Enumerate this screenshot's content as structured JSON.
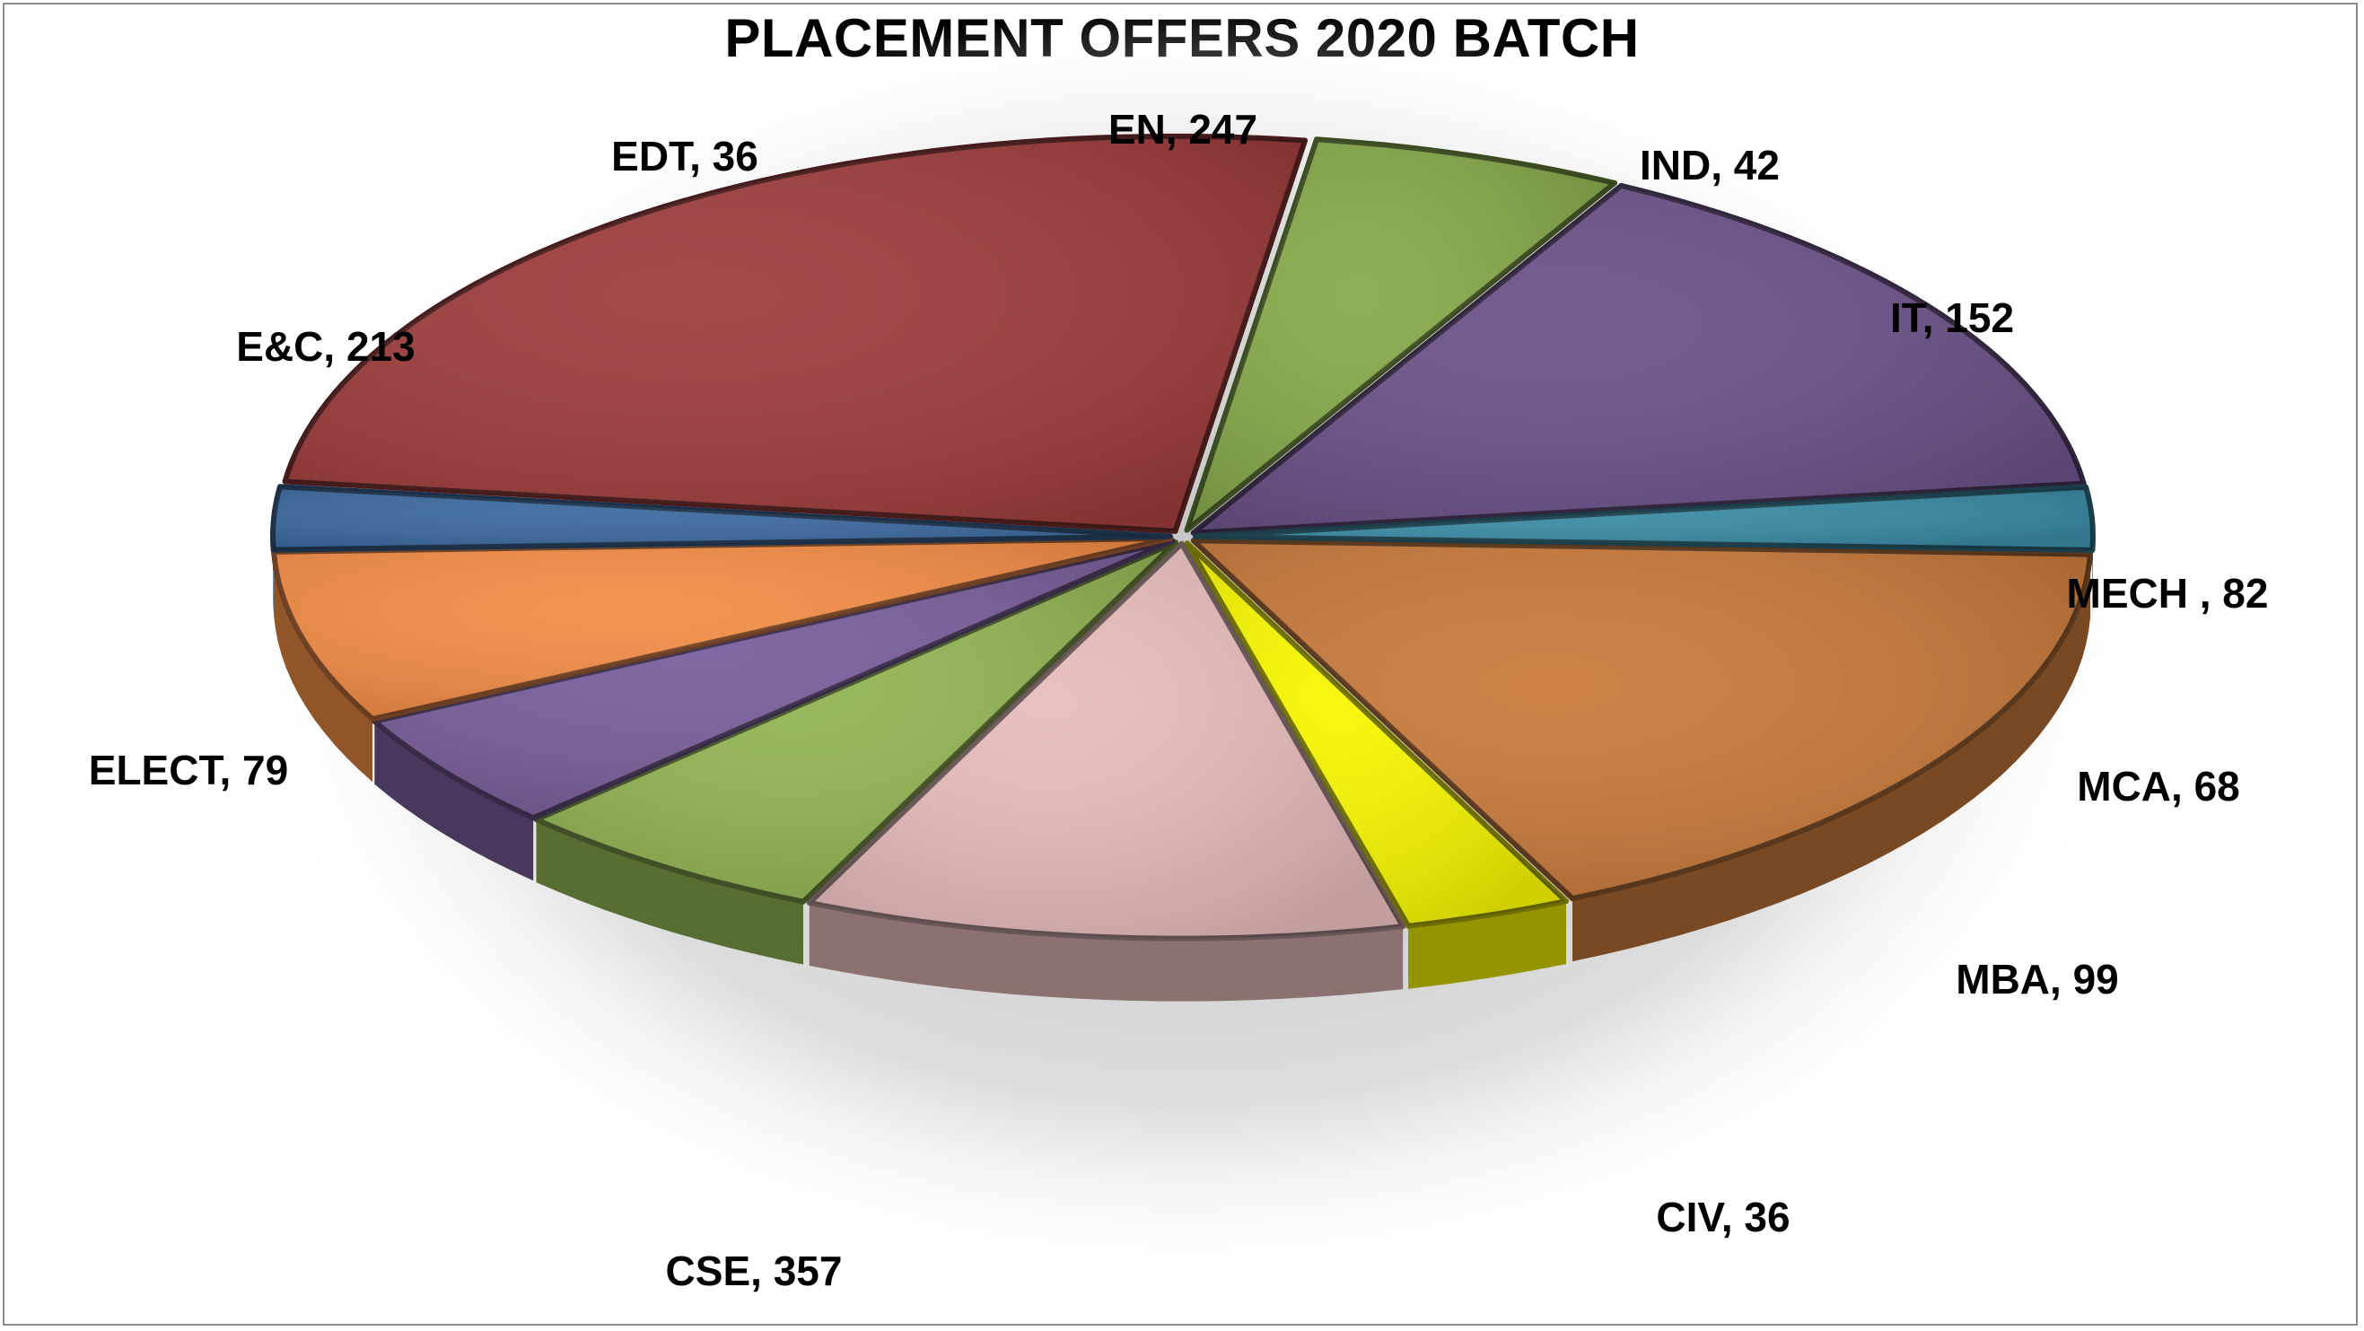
{
  "chart_data": {
    "type": "pie",
    "title": "PLACEMENT OFFERS 2020 BATCH",
    "three_d": true,
    "exploded": true,
    "slices": [
      {
        "label": "EN, 247",
        "name": "EN",
        "value": 247,
        "color": "#c97a3b"
      },
      {
        "label": "IND, 42",
        "name": "IND",
        "value": 42,
        "color": "#f7f700"
      },
      {
        "label": "IT, 152",
        "name": "IT",
        "value": 152,
        "color": "#e8bcbc"
      },
      {
        "label": "MECH , 82",
        "name": "MECH",
        "value": 82,
        "color": "#93b553"
      },
      {
        "label": "MCA, 68",
        "name": "MCA",
        "value": 68,
        "color": "#7a5e9c"
      },
      {
        "label": "MBA, 99",
        "name": "MBA",
        "value": 99,
        "color": "#f48d46"
      },
      {
        "label": "CIV, 36",
        "name": "CIV",
        "value": 36,
        "color": "#3c6aa0"
      },
      {
        "label": "CSE, 357",
        "name": "CSE",
        "value": 357,
        "color": "#9e3d3c"
      },
      {
        "label": "ELECT, 79",
        "name": "ELECT",
        "value": 79,
        "color": "#86a94a"
      },
      {
        "label": "E&C, 213",
        "name": "E&C",
        "value": 213,
        "color": "#6c528a"
      },
      {
        "label": "EDT, 36",
        "name": "EDT",
        "value": 36,
        "color": "#3a8ca6"
      }
    ]
  }
}
